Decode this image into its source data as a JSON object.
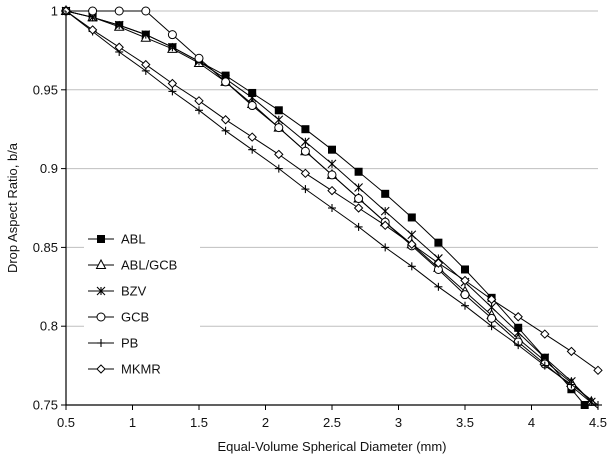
{
  "chart_data": {
    "type": "line",
    "title": "",
    "xlabel": "Equal-Volume Spherical Diameter (mm)",
    "ylabel": "Drop Aspect Ratio, b/a",
    "xlim": [
      0.5,
      4.5
    ],
    "ylim": [
      0.75,
      1.0
    ],
    "x_ticks": [
      "0.5",
      "1",
      "1.5",
      "2",
      "2.5",
      "3",
      "3.5",
      "4",
      "4.5"
    ],
    "y_ticks": [
      "0.75",
      "0.8",
      "0.85",
      "0.9",
      "0.95",
      "1"
    ],
    "grid": true,
    "legend_position": "left-middle",
    "series": [
      {
        "name": "ABL",
        "marker": "filled-square",
        "x": [
          0.5,
          0.7,
          0.9,
          1.1,
          1.3,
          1.5,
          1.7,
          1.9,
          2.1,
          2.3,
          2.5,
          2.7,
          2.9,
          3.1,
          3.3,
          3.5,
          3.7,
          3.9,
          4.1,
          4.3,
          4.4
        ],
        "y": [
          1.0,
          0.996,
          0.991,
          0.985,
          0.977,
          0.968,
          0.959,
          0.948,
          0.937,
          0.925,
          0.912,
          0.898,
          0.884,
          0.869,
          0.853,
          0.836,
          0.818,
          0.799,
          0.78,
          0.76,
          0.75
        ]
      },
      {
        "name": "ABL/GCB",
        "marker": "open-triangle",
        "x": [
          0.5,
          0.7,
          0.9,
          1.1,
          1.3,
          1.5,
          1.7,
          1.9,
          2.1,
          2.3,
          2.5,
          2.7,
          2.9,
          3.1,
          3.3,
          3.5,
          3.7,
          3.9,
          4.1,
          4.3,
          4.45
        ],
        "y": [
          1.0,
          0.996,
          0.99,
          0.983,
          0.976,
          0.967,
          0.955,
          0.941,
          0.926,
          0.911,
          0.896,
          0.881,
          0.866,
          0.852,
          0.837,
          0.822,
          0.807,
          0.792,
          0.778,
          0.764,
          0.752
        ]
      },
      {
        "name": "BZV",
        "marker": "star",
        "x": [
          0.5,
          0.7,
          0.9,
          1.1,
          1.3,
          1.5,
          1.7,
          1.9,
          2.1,
          2.3,
          2.5,
          2.7,
          2.9,
          3.1,
          3.3,
          3.5,
          3.7,
          3.9,
          4.1,
          4.3,
          4.45
        ],
        "y": [
          1.0,
          0.996,
          0.991,
          0.985,
          0.977,
          0.968,
          0.957,
          0.945,
          0.931,
          0.917,
          0.903,
          0.888,
          0.873,
          0.858,
          0.843,
          0.828,
          0.812,
          0.796,
          0.78,
          0.765,
          0.752
        ]
      },
      {
        "name": "GCB",
        "marker": "open-circle",
        "x": [
          0.5,
          0.7,
          0.9,
          1.1,
          1.3,
          1.5,
          1.7,
          1.9,
          2.1,
          2.3,
          2.5,
          2.7,
          2.9,
          3.1,
          3.3,
          3.5,
          3.7,
          3.9,
          4.1,
          4.3,
          4.5
        ],
        "y": [
          1.0,
          1.0,
          1.0,
          1.0,
          0.985,
          0.97,
          0.955,
          0.94,
          0.926,
          0.911,
          0.896,
          0.881,
          0.866,
          0.851,
          0.836,
          0.82,
          0.805,
          0.79,
          0.776,
          0.762,
          0.748
        ]
      },
      {
        "name": "PB",
        "marker": "plus",
        "x": [
          0.5,
          0.7,
          0.9,
          1.1,
          1.3,
          1.5,
          1.7,
          1.9,
          2.1,
          2.3,
          2.5,
          2.7,
          2.9,
          3.1,
          3.3,
          3.5,
          3.7,
          3.9,
          4.1,
          4.3,
          4.5
        ],
        "y": [
          1.0,
          0.987,
          0.974,
          0.962,
          0.949,
          0.937,
          0.924,
          0.912,
          0.9,
          0.887,
          0.875,
          0.863,
          0.85,
          0.838,
          0.825,
          0.813,
          0.8,
          0.788,
          0.775,
          0.763,
          0.75
        ]
      },
      {
        "name": "MKMR",
        "marker": "open-diamond",
        "x": [
          0.5,
          0.7,
          0.9,
          1.1,
          1.3,
          1.5,
          1.7,
          1.9,
          2.1,
          2.3,
          2.5,
          2.7,
          2.9,
          3.1,
          3.3,
          3.5,
          3.7,
          3.9,
          4.1,
          4.3,
          4.5
        ],
        "y": [
          1.0,
          0.988,
          0.977,
          0.966,
          0.954,
          0.943,
          0.931,
          0.92,
          0.909,
          0.897,
          0.886,
          0.875,
          0.864,
          0.852,
          0.84,
          0.829,
          0.817,
          0.806,
          0.795,
          0.784,
          0.772
        ]
      }
    ]
  }
}
